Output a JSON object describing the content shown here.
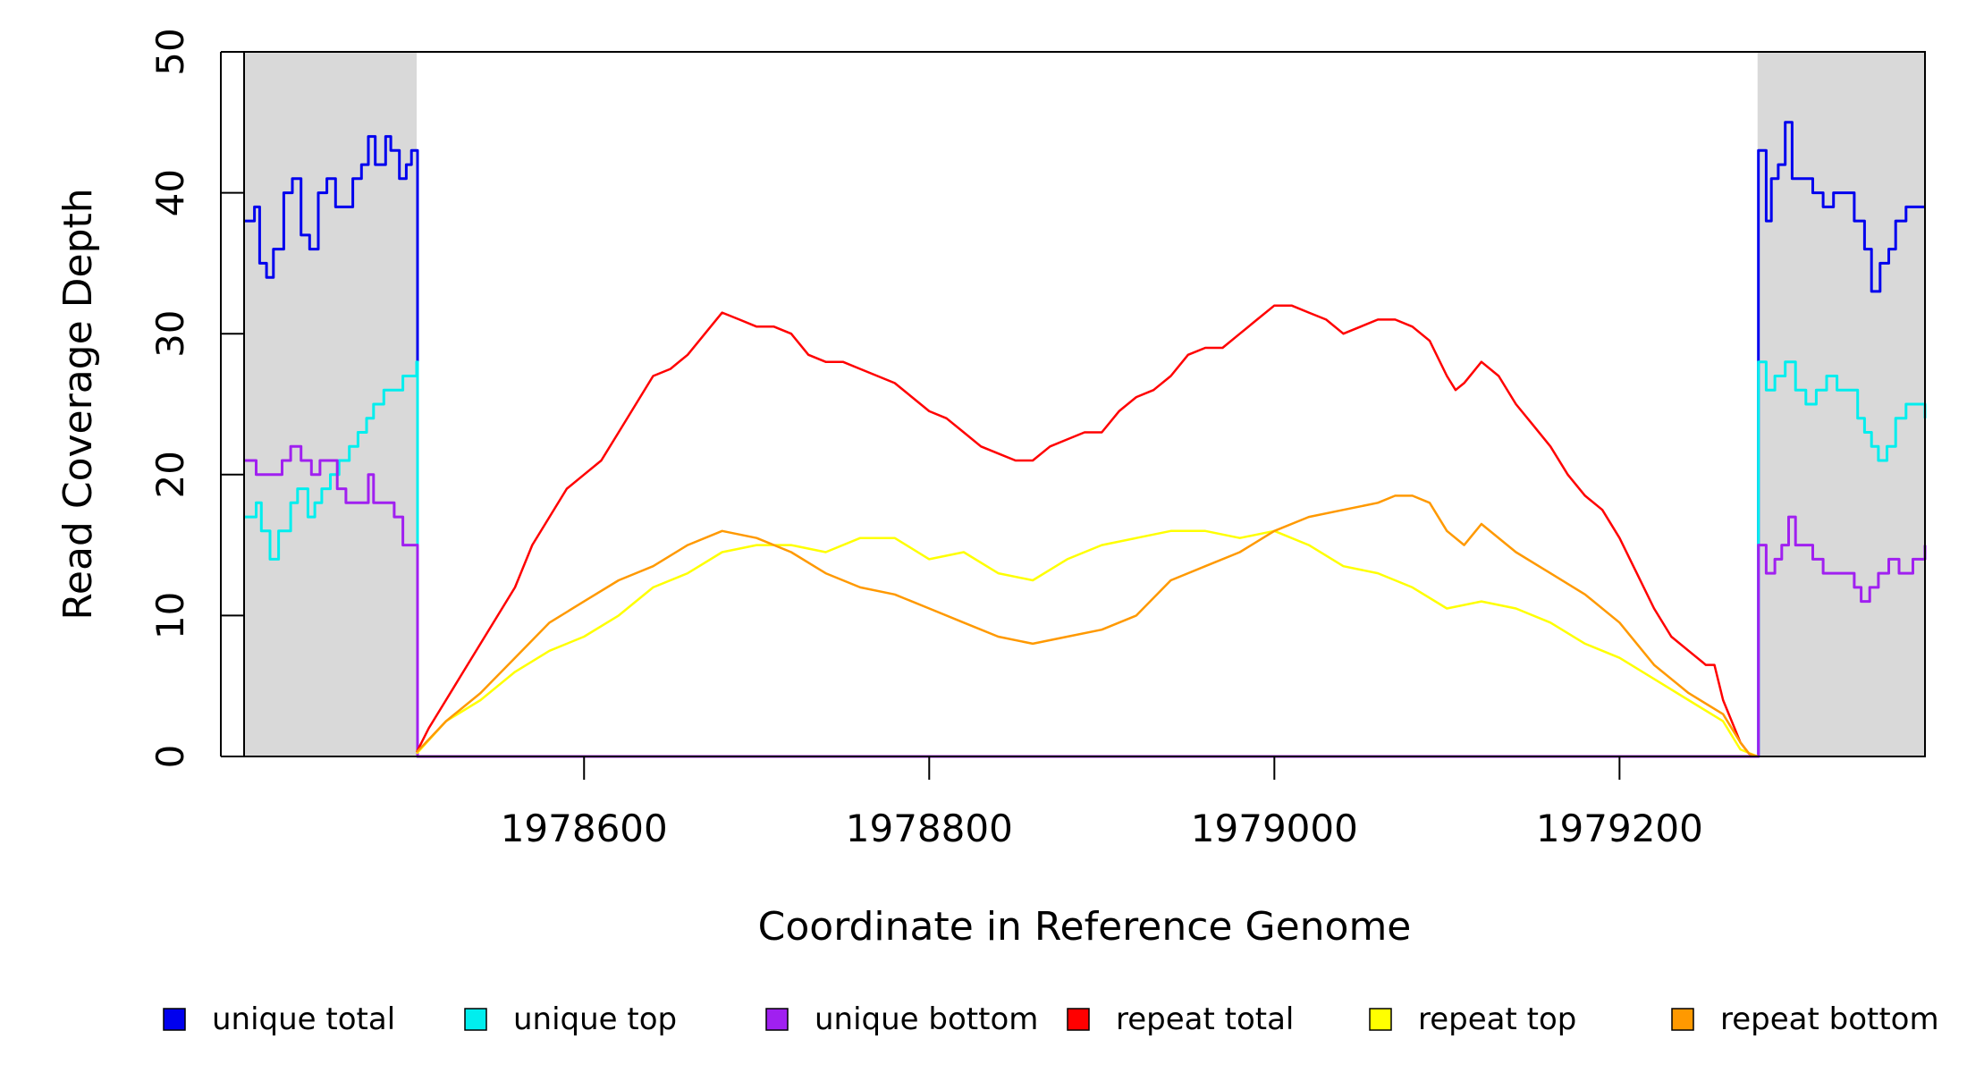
{
  "chart_data": {
    "type": "line",
    "title": "",
    "xlabel": "Coordinate in Reference Genome",
    "ylabel": "Read Coverage Depth",
    "xlim": [
      1978403,
      1979377
    ],
    "ylim": [
      0,
      50
    ],
    "xticks": [
      1978600,
      1978800,
      1979000,
      1979200
    ],
    "yticks": [
      0,
      10,
      20,
      30,
      40,
      50
    ],
    "shaded_regions": [
      {
        "start": 1978403,
        "end": 1978503,
        "color": "#d9d9d9"
      },
      {
        "start": 1979280,
        "end": 1979377,
        "color": "#d9d9d9"
      }
    ],
    "legend_position": "bottom",
    "series": [
      {
        "name": "unique total",
        "color": "#0000ee",
        "style": "step",
        "points": [
          [
            1978403,
            38
          ],
          [
            1978409,
            39
          ],
          [
            1978412,
            35
          ],
          [
            1978416,
            34
          ],
          [
            1978420,
            36
          ],
          [
            1978426,
            40
          ],
          [
            1978431,
            41
          ],
          [
            1978436,
            37
          ],
          [
            1978441,
            36
          ],
          [
            1978446,
            40
          ],
          [
            1978451,
            41
          ],
          [
            1978456,
            39
          ],
          [
            1978466,
            41
          ],
          [
            1978471,
            42
          ],
          [
            1978475,
            44
          ],
          [
            1978479,
            42
          ],
          [
            1978485,
            44
          ],
          [
            1978488,
            43
          ],
          [
            1978493,
            41
          ],
          [
            1978497,
            42
          ],
          [
            1978500,
            43
          ],
          [
            1978503,
            43
          ],
          [
            1978503.5,
            0
          ],
          [
            1979280,
            0
          ],
          [
            1979280.5,
            43
          ],
          [
            1979285,
            38
          ],
          [
            1979288,
            41
          ],
          [
            1979292,
            42
          ],
          [
            1979296,
            45
          ],
          [
            1979300,
            41
          ],
          [
            1979306,
            41
          ],
          [
            1979312,
            40
          ],
          [
            1979318,
            39
          ],
          [
            1979324,
            40
          ],
          [
            1979330,
            40
          ],
          [
            1979336,
            38
          ],
          [
            1979342,
            36
          ],
          [
            1979346,
            33
          ],
          [
            1979351,
            35
          ],
          [
            1979356,
            36
          ],
          [
            1979360,
            38
          ],
          [
            1979366,
            39
          ],
          [
            1979377,
            39
          ]
        ]
      },
      {
        "name": "unique top",
        "color": "#00eeee",
        "style": "step",
        "points": [
          [
            1978403,
            17
          ],
          [
            1978410,
            18
          ],
          [
            1978413,
            16
          ],
          [
            1978418,
            14
          ],
          [
            1978423,
            16
          ],
          [
            1978430,
            18
          ],
          [
            1978434,
            19
          ],
          [
            1978440,
            17
          ],
          [
            1978444,
            18
          ],
          [
            1978448,
            19
          ],
          [
            1978453,
            20
          ],
          [
            1978458,
            21
          ],
          [
            1978464,
            22
          ],
          [
            1978469,
            23
          ],
          [
            1978474,
            24
          ],
          [
            1978478,
            25
          ],
          [
            1978484,
            26
          ],
          [
            1978490,
            26
          ],
          [
            1978495,
            27
          ],
          [
            1978500,
            27
          ],
          [
            1978503,
            28
          ],
          [
            1978503.5,
            0
          ],
          [
            1979280,
            0
          ],
          [
            1979280.5,
            28
          ],
          [
            1979285,
            26
          ],
          [
            1979290,
            27
          ],
          [
            1979296,
            28
          ],
          [
            1979302,
            26
          ],
          [
            1979308,
            25
          ],
          [
            1979314,
            26
          ],
          [
            1979320,
            27
          ],
          [
            1979326,
            26
          ],
          [
            1979332,
            26
          ],
          [
            1979338,
            24
          ],
          [
            1979342,
            23
          ],
          [
            1979346,
            22
          ],
          [
            1979350,
            21
          ],
          [
            1979355,
            22
          ],
          [
            1979360,
            24
          ],
          [
            1979366,
            25
          ],
          [
            1979372,
            25
          ],
          [
            1979377,
            24
          ]
        ]
      },
      {
        "name": "unique bottom",
        "color": "#a020f0",
        "style": "step",
        "points": [
          [
            1978403,
            21
          ],
          [
            1978410,
            20
          ],
          [
            1978418,
            20
          ],
          [
            1978425,
            21
          ],
          [
            1978430,
            22
          ],
          [
            1978436,
            21
          ],
          [
            1978442,
            20
          ],
          [
            1978447,
            21
          ],
          [
            1978452,
            21
          ],
          [
            1978457,
            19
          ],
          [
            1978462,
            18
          ],
          [
            1978468,
            18
          ],
          [
            1978475,
            20
          ],
          [
            1978478,
            18
          ],
          [
            1978484,
            18
          ],
          [
            1978490,
            17
          ],
          [
            1978495,
            15
          ],
          [
            1978503,
            15
          ],
          [
            1978503.5,
            0
          ],
          [
            1979280,
            0
          ],
          [
            1979280.5,
            15
          ],
          [
            1979285,
            13
          ],
          [
            1979290,
            14
          ],
          [
            1979294,
            15
          ],
          [
            1979298,
            17
          ],
          [
            1979302,
            15
          ],
          [
            1979307,
            15
          ],
          [
            1979312,
            14
          ],
          [
            1979318,
            13
          ],
          [
            1979324,
            13
          ],
          [
            1979330,
            13
          ],
          [
            1979336,
            12
          ],
          [
            1979340,
            11
          ],
          [
            1979345,
            12
          ],
          [
            1979350,
            13
          ],
          [
            1979356,
            14
          ],
          [
            1979362,
            13
          ],
          [
            1979370,
            14
          ],
          [
            1979377,
            15
          ]
        ]
      },
      {
        "name": "repeat total",
        "color": "#ff0000",
        "style": "line",
        "points": [
          [
            1978503,
            0.3
          ],
          [
            1978510,
            2
          ],
          [
            1978520,
            4
          ],
          [
            1978530,
            6
          ],
          [
            1978540,
            8
          ],
          [
            1978550,
            10
          ],
          [
            1978560,
            12
          ],
          [
            1978570,
            15
          ],
          [
            1978580,
            17
          ],
          [
            1978590,
            19
          ],
          [
            1978600,
            20
          ],
          [
            1978610,
            21
          ],
          [
            1978620,
            23
          ],
          [
            1978630,
            25
          ],
          [
            1978640,
            27
          ],
          [
            1978650,
            27.5
          ],
          [
            1978660,
            28.5
          ],
          [
            1978670,
            30
          ],
          [
            1978680,
            31.5
          ],
          [
            1978690,
            31
          ],
          [
            1978700,
            30.5
          ],
          [
            1978710,
            30.5
          ],
          [
            1978720,
            30
          ],
          [
            1978730,
            28.5
          ],
          [
            1978740,
            28
          ],
          [
            1978750,
            28
          ],
          [
            1978760,
            27.5
          ],
          [
            1978770,
            27
          ],
          [
            1978780,
            26.5
          ],
          [
            1978790,
            25.5
          ],
          [
            1978800,
            24.5
          ],
          [
            1978810,
            24
          ],
          [
            1978820,
            23
          ],
          [
            1978830,
            22
          ],
          [
            1978840,
            21.5
          ],
          [
            1978850,
            21
          ],
          [
            1978860,
            21
          ],
          [
            1978870,
            22
          ],
          [
            1978880,
            22.5
          ],
          [
            1978890,
            23
          ],
          [
            1978900,
            23
          ],
          [
            1978910,
            24.5
          ],
          [
            1978920,
            25.5
          ],
          [
            1978930,
            26
          ],
          [
            1978940,
            27
          ],
          [
            1978950,
            28.5
          ],
          [
            1978960,
            29
          ],
          [
            1978970,
            29
          ],
          [
            1978980,
            30
          ],
          [
            1978990,
            31
          ],
          [
            1979000,
            32
          ],
          [
            1979010,
            32
          ],
          [
            1979020,
            31.5
          ],
          [
            1979030,
            31
          ],
          [
            1979040,
            30
          ],
          [
            1979050,
            30.5
          ],
          [
            1979060,
            31
          ],
          [
            1979070,
            31
          ],
          [
            1979080,
            30.5
          ],
          [
            1979090,
            29.5
          ],
          [
            1979100,
            27
          ],
          [
            1979105,
            26
          ],
          [
            1979110,
            26.5
          ],
          [
            1979120,
            28
          ],
          [
            1979130,
            27
          ],
          [
            1979140,
            25
          ],
          [
            1979150,
            23.5
          ],
          [
            1979160,
            22
          ],
          [
            1979170,
            20
          ],
          [
            1979180,
            18.5
          ],
          [
            1979190,
            17.5
          ],
          [
            1979200,
            15.5
          ],
          [
            1979210,
            13
          ],
          [
            1979220,
            10.5
          ],
          [
            1979230,
            8.5
          ],
          [
            1979240,
            7.5
          ],
          [
            1979250,
            6.5
          ],
          [
            1979255,
            6.5
          ],
          [
            1979260,
            4
          ],
          [
            1979270,
            1
          ],
          [
            1979275,
            0.2
          ],
          [
            1979280,
            0
          ]
        ]
      },
      {
        "name": "repeat top",
        "color": "#ffff00",
        "style": "line",
        "points": [
          [
            1978503,
            0.2
          ],
          [
            1978520,
            2.5
          ],
          [
            1978540,
            4
          ],
          [
            1978560,
            6
          ],
          [
            1978580,
            7.5
          ],
          [
            1978600,
            8.5
          ],
          [
            1978620,
            10
          ],
          [
            1978640,
            12
          ],
          [
            1978660,
            13
          ],
          [
            1978680,
            14.5
          ],
          [
            1978700,
            15
          ],
          [
            1978720,
            15
          ],
          [
            1978740,
            14.5
          ],
          [
            1978760,
            15.5
          ],
          [
            1978780,
            15.5
          ],
          [
            1978800,
            14
          ],
          [
            1978820,
            14.5
          ],
          [
            1978840,
            13
          ],
          [
            1978860,
            12.5
          ],
          [
            1978880,
            14
          ],
          [
            1978900,
            15
          ],
          [
            1978920,
            15.5
          ],
          [
            1978940,
            16
          ],
          [
            1978960,
            16
          ],
          [
            1978980,
            15.5
          ],
          [
            1979000,
            16
          ],
          [
            1979020,
            15
          ],
          [
            1979040,
            13.5
          ],
          [
            1979060,
            13
          ],
          [
            1979080,
            12
          ],
          [
            1979100,
            10.5
          ],
          [
            1979120,
            11
          ],
          [
            1979140,
            10.5
          ],
          [
            1979160,
            9.5
          ],
          [
            1979180,
            8
          ],
          [
            1979200,
            7
          ],
          [
            1979220,
            5.5
          ],
          [
            1979240,
            4
          ],
          [
            1979260,
            2.5
          ],
          [
            1979270,
            0.5
          ],
          [
            1979280,
            0
          ]
        ]
      },
      {
        "name": "repeat bottom",
        "color": "#ff9900",
        "style": "line",
        "points": [
          [
            1978503,
            0.3
          ],
          [
            1978520,
            2.5
          ],
          [
            1978540,
            4.5
          ],
          [
            1978560,
            7
          ],
          [
            1978580,
            9.5
          ],
          [
            1978600,
            11
          ],
          [
            1978620,
            12.5
          ],
          [
            1978640,
            13.5
          ],
          [
            1978660,
            15
          ],
          [
            1978680,
            16
          ],
          [
            1978700,
            15.5
          ],
          [
            1978720,
            14.5
          ],
          [
            1978740,
            13
          ],
          [
            1978760,
            12
          ],
          [
            1978780,
            11.5
          ],
          [
            1978800,
            10.5
          ],
          [
            1978820,
            9.5
          ],
          [
            1978840,
            8.5
          ],
          [
            1978860,
            8
          ],
          [
            1978880,
            8.5
          ],
          [
            1978900,
            9
          ],
          [
            1978920,
            10
          ],
          [
            1978940,
            12.5
          ],
          [
            1978960,
            13.5
          ],
          [
            1978980,
            14.5
          ],
          [
            1979000,
            16
          ],
          [
            1979020,
            17
          ],
          [
            1979040,
            17.5
          ],
          [
            1979060,
            18
          ],
          [
            1979070,
            18.5
          ],
          [
            1979080,
            18.5
          ],
          [
            1979090,
            18
          ],
          [
            1979100,
            16
          ],
          [
            1979110,
            15
          ],
          [
            1979120,
            16.5
          ],
          [
            1979140,
            14.5
          ],
          [
            1979160,
            13
          ],
          [
            1979180,
            11.5
          ],
          [
            1979200,
            9.5
          ],
          [
            1979220,
            6.5
          ],
          [
            1979240,
            4.5
          ],
          [
            1979260,
            3
          ],
          [
            1979270,
            1
          ],
          [
            1979275,
            0.2
          ],
          [
            1979280,
            0
          ]
        ]
      }
    ]
  }
}
